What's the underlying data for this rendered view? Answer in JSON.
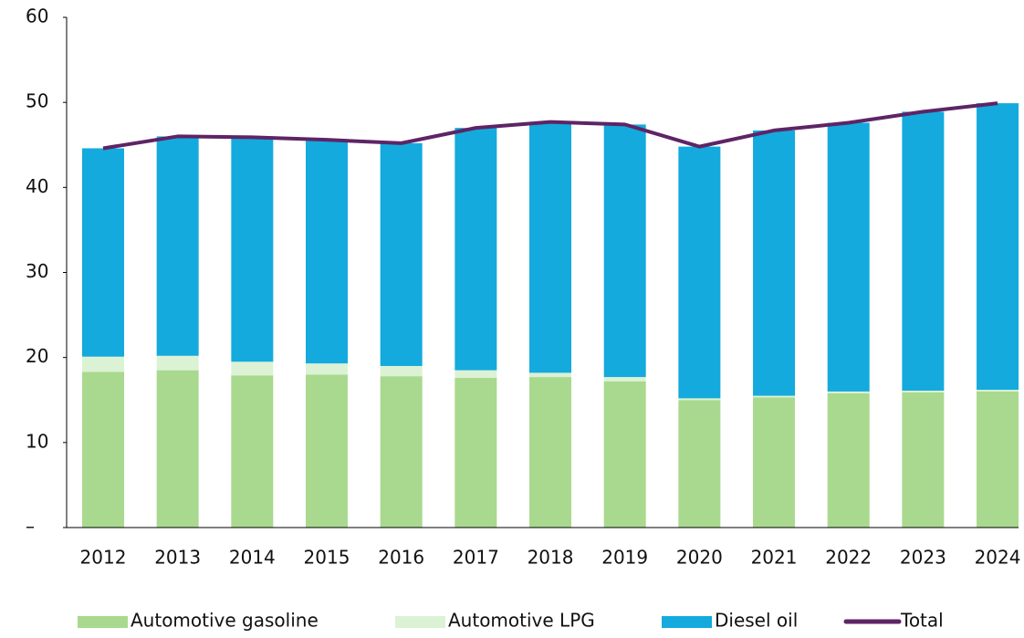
{
  "chart_data": {
    "type": "stacked_bar_line",
    "categories": [
      "2012",
      "2013",
      "2014",
      "2015",
      "2016",
      "2017",
      "2018",
      "2019",
      "2020",
      "2021",
      "2022",
      "2023",
      "2024"
    ],
    "series": [
      {
        "name": "Automotive gasoline",
        "color": "#a9d98e",
        "values": [
          18.3,
          18.5,
          17.9,
          18.0,
          17.8,
          17.6,
          17.7,
          17.2,
          15.0,
          15.3,
          15.8,
          15.9,
          16.0
        ]
      },
      {
        "name": "Automotive LPG",
        "color": "#dcf2d4",
        "values": [
          1.8,
          1.7,
          1.6,
          1.3,
          1.2,
          0.9,
          0.5,
          0.5,
          0.2,
          0.2,
          0.2,
          0.2,
          0.2
        ]
      },
      {
        "name": "Diesel oil",
        "color": "#14aadd",
        "values": [
          24.5,
          25.8,
          26.4,
          26.3,
          26.2,
          28.5,
          29.5,
          29.7,
          29.6,
          31.2,
          31.6,
          32.8,
          33.7
        ]
      },
      {
        "name": "Total",
        "color": "#5e2466",
        "line": true,
        "values": [
          44.6,
          46.0,
          45.9,
          45.6,
          45.2,
          47.0,
          47.7,
          47.4,
          44.8,
          46.7,
          47.6,
          48.9,
          49.9
        ]
      }
    ],
    "ylim": [
      0,
      60
    ],
    "yticks": [
      {
        "value": 0,
        "label": "–"
      },
      10,
      20,
      30,
      40,
      50,
      60
    ],
    "grid": false
  }
}
